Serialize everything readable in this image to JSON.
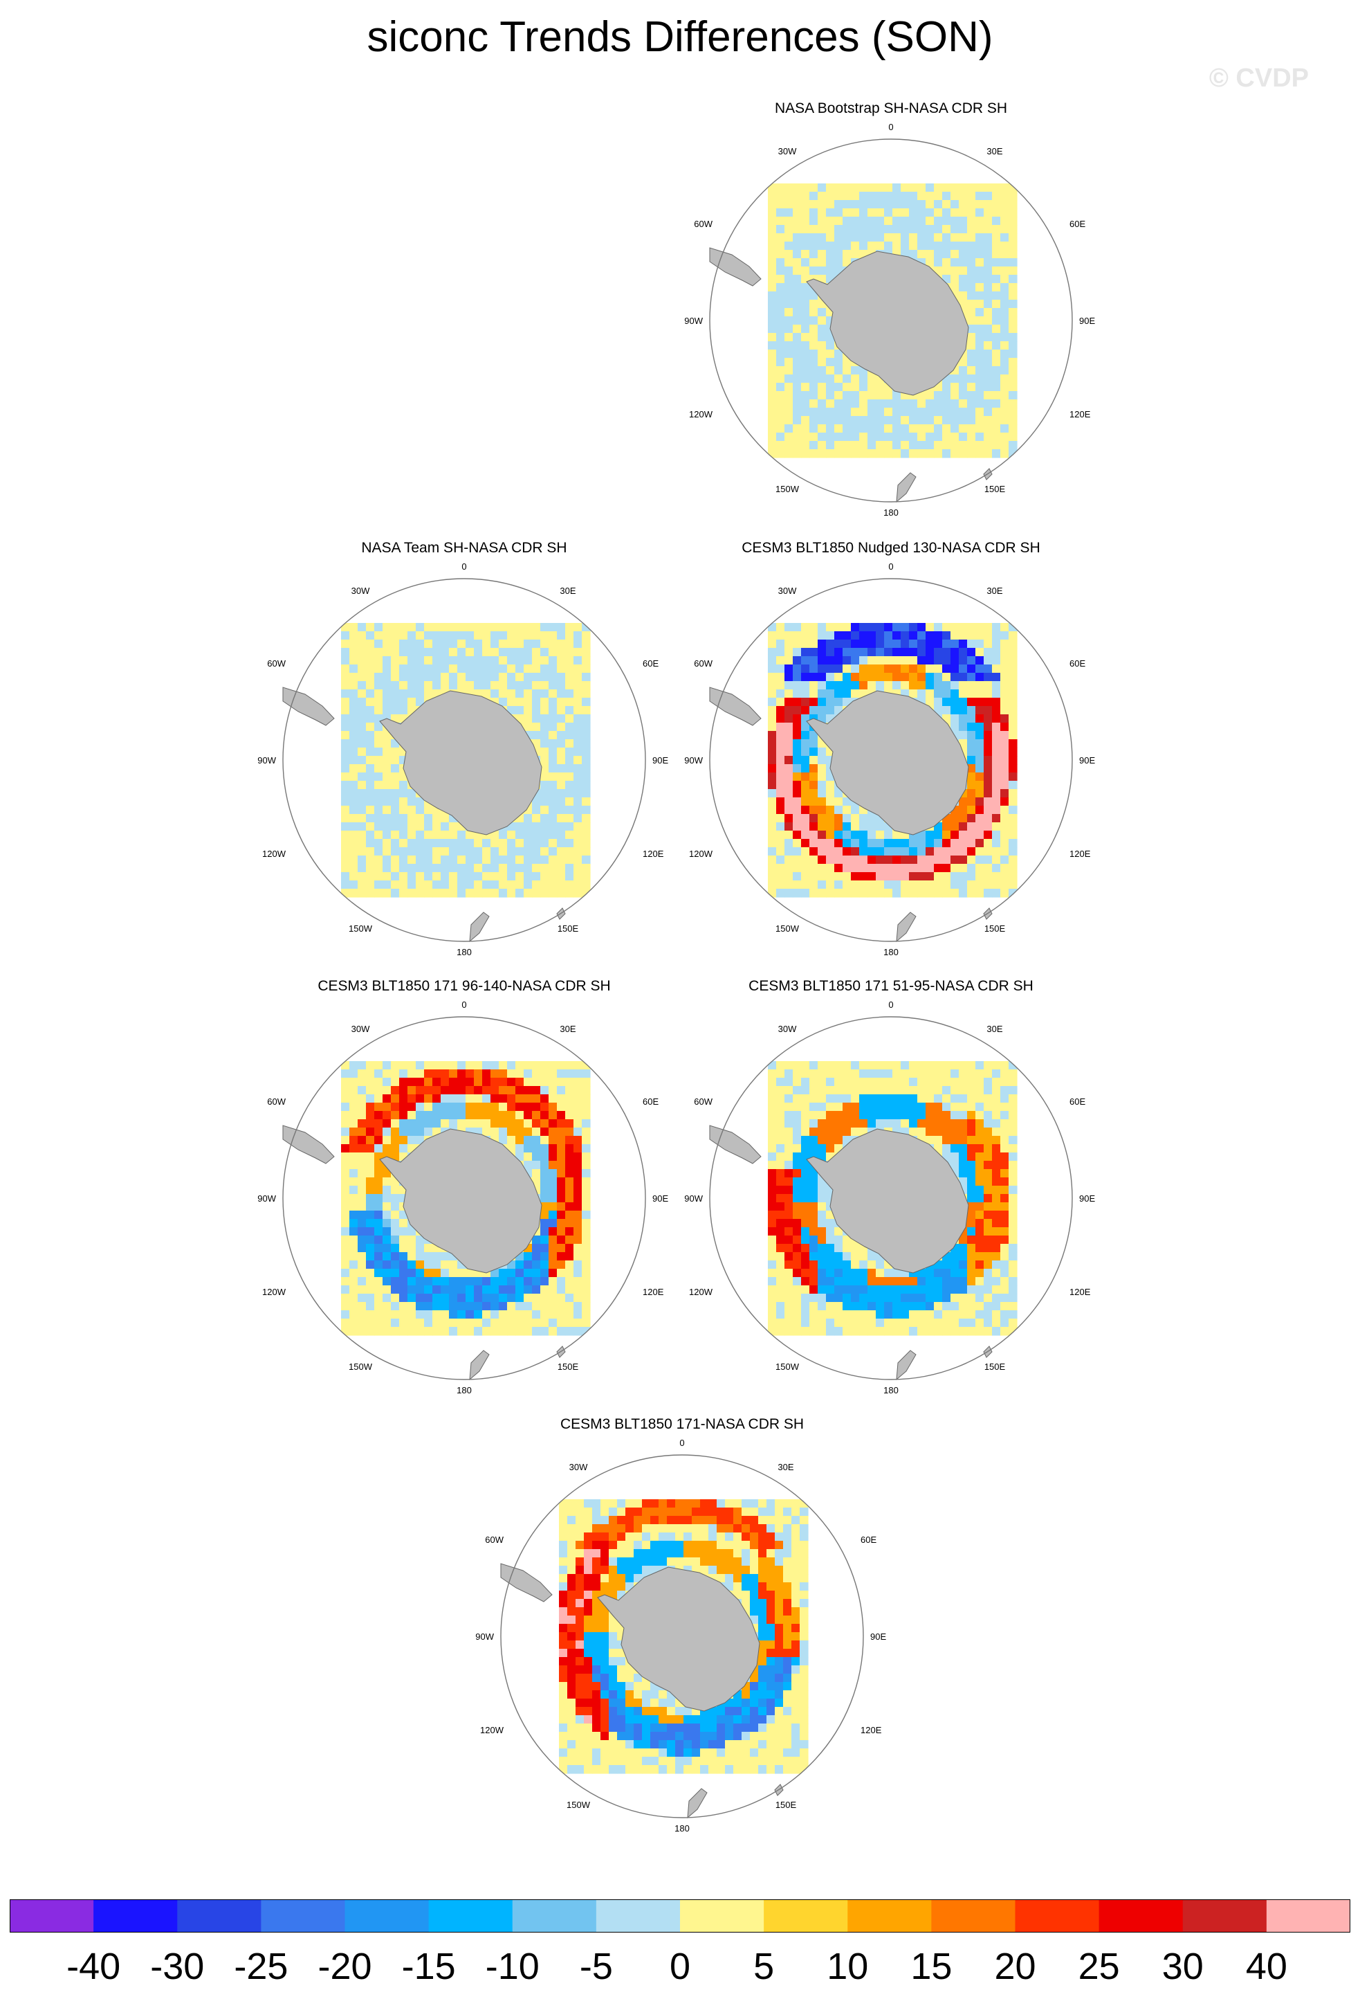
{
  "title": "siconc Trends Differences (SON)",
  "watermark": "© CVDP",
  "chart_data": {
    "type": "heatmap",
    "projection": "south-polar-stereographic",
    "colorbar": {
      "labels": [
        "-40",
        "-30",
        "-25",
        "-20",
        "-15",
        "-10",
        "-5",
        "0",
        "5",
        "10",
        "15",
        "20",
        "25",
        "30",
        "40"
      ],
      "colors": [
        "#8a2be2",
        "#1a14ff",
        "#2845e6",
        "#3a78ee",
        "#2196f3",
        "#00b4ff",
        "#72c4f0",
        "#b3dff3",
        "#fff68f",
        "#ffd52e",
        "#ffa500",
        "#ff7700",
        "#ff3300",
        "#ee0000",
        "#cc2222",
        "#ffb3b3"
      ]
    },
    "panels": [
      {
        "title": "NASA Bootstrap SH-NASA CDR SH",
        "pattern": "neutral"
      },
      {
        "title": "NASA Team SH-NASA CDR SH",
        "pattern": "neutral"
      },
      {
        "title": "CESM3 BLT1850 Nudged 130-NASA CDR SH",
        "pattern": "nudged"
      },
      {
        "title": "CESM3 BLT1850 171 96-140-NASA CDR SH",
        "pattern": "mixed_a"
      },
      {
        "title": "CESM3 BLT1850 171 51-95-NASA CDR SH",
        "pattern": "mixed_b"
      },
      {
        "title": "CESM3 BLT1850 171-NASA CDR SH",
        "pattern": "mixed_c"
      }
    ],
    "longitude_labels": {
      "top": "0",
      "bottom": "180",
      "left_upper": "30W",
      "right_upper": "30E",
      "left_mid_upper": "60W",
      "right_mid_upper": "60E",
      "left_mid": "90W",
      "right_mid": "90E",
      "left_mid_lower": "120W",
      "right_mid_lower": "120E",
      "left_lower": "150W",
      "right_lower": "150E"
    }
  }
}
